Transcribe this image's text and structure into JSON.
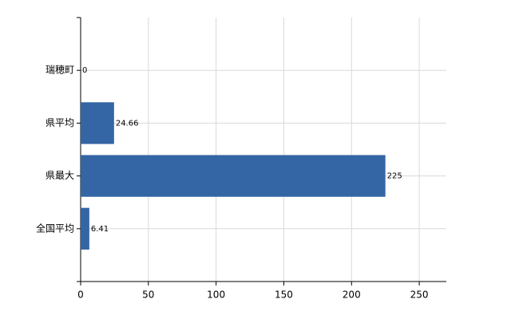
{
  "chart_data": {
    "type": "bar",
    "orientation": "horizontal",
    "categories": [
      "瑞穂町",
      "県平均",
      "県最大",
      "全国平均"
    ],
    "values": [
      0,
      24.66,
      225,
      6.41
    ],
    "color": "#3465a4",
    "xlim": [
      0,
      270
    ],
    "xticks": [
      0,
      50,
      100,
      150,
      200,
      250
    ],
    "grid": true
  }
}
